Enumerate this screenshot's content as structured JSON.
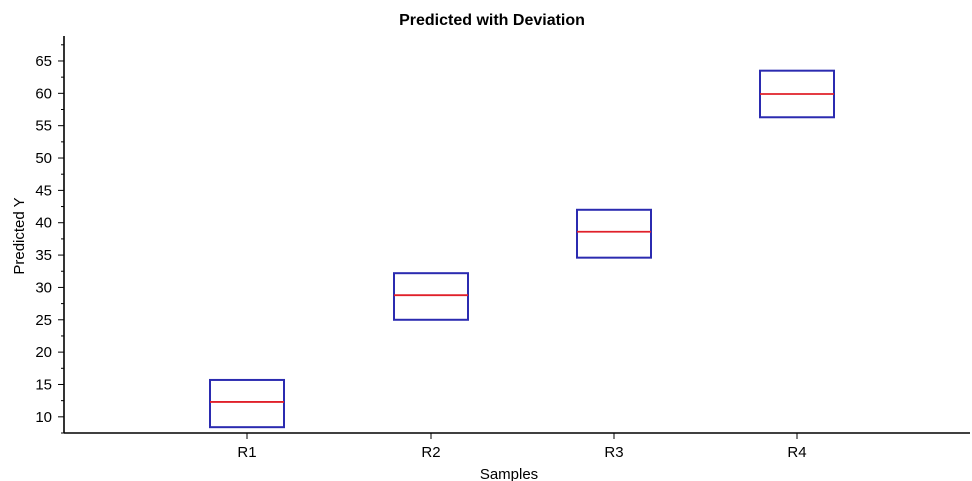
{
  "chart_data": {
    "type": "boxplot",
    "title": "Predicted with Deviation",
    "xlabel": "Samples",
    "ylabel": "Predicted Y",
    "categories": [
      "R1",
      "R2",
      "R3",
      "R4"
    ],
    "boxes": [
      {
        "category": "R1",
        "low": 8.4,
        "mid": 12.3,
        "high": 15.7
      },
      {
        "category": "R2",
        "low": 25.0,
        "mid": 28.8,
        "high": 32.2
      },
      {
        "category": "R3",
        "low": 34.6,
        "mid": 38.6,
        "high": 42.0
      },
      {
        "category": "R4",
        "low": 56.3,
        "mid": 59.9,
        "high": 63.5
      }
    ],
    "ylim": [
      7.5,
      70
    ],
    "yticks": [
      10,
      15,
      20,
      25,
      30,
      35,
      40,
      45,
      50,
      55,
      60,
      65
    ],
    "grid": false,
    "legend": "none",
    "colors": {
      "box": "#2b2bb0",
      "median": "#e0202a",
      "axis": "#000000"
    }
  }
}
